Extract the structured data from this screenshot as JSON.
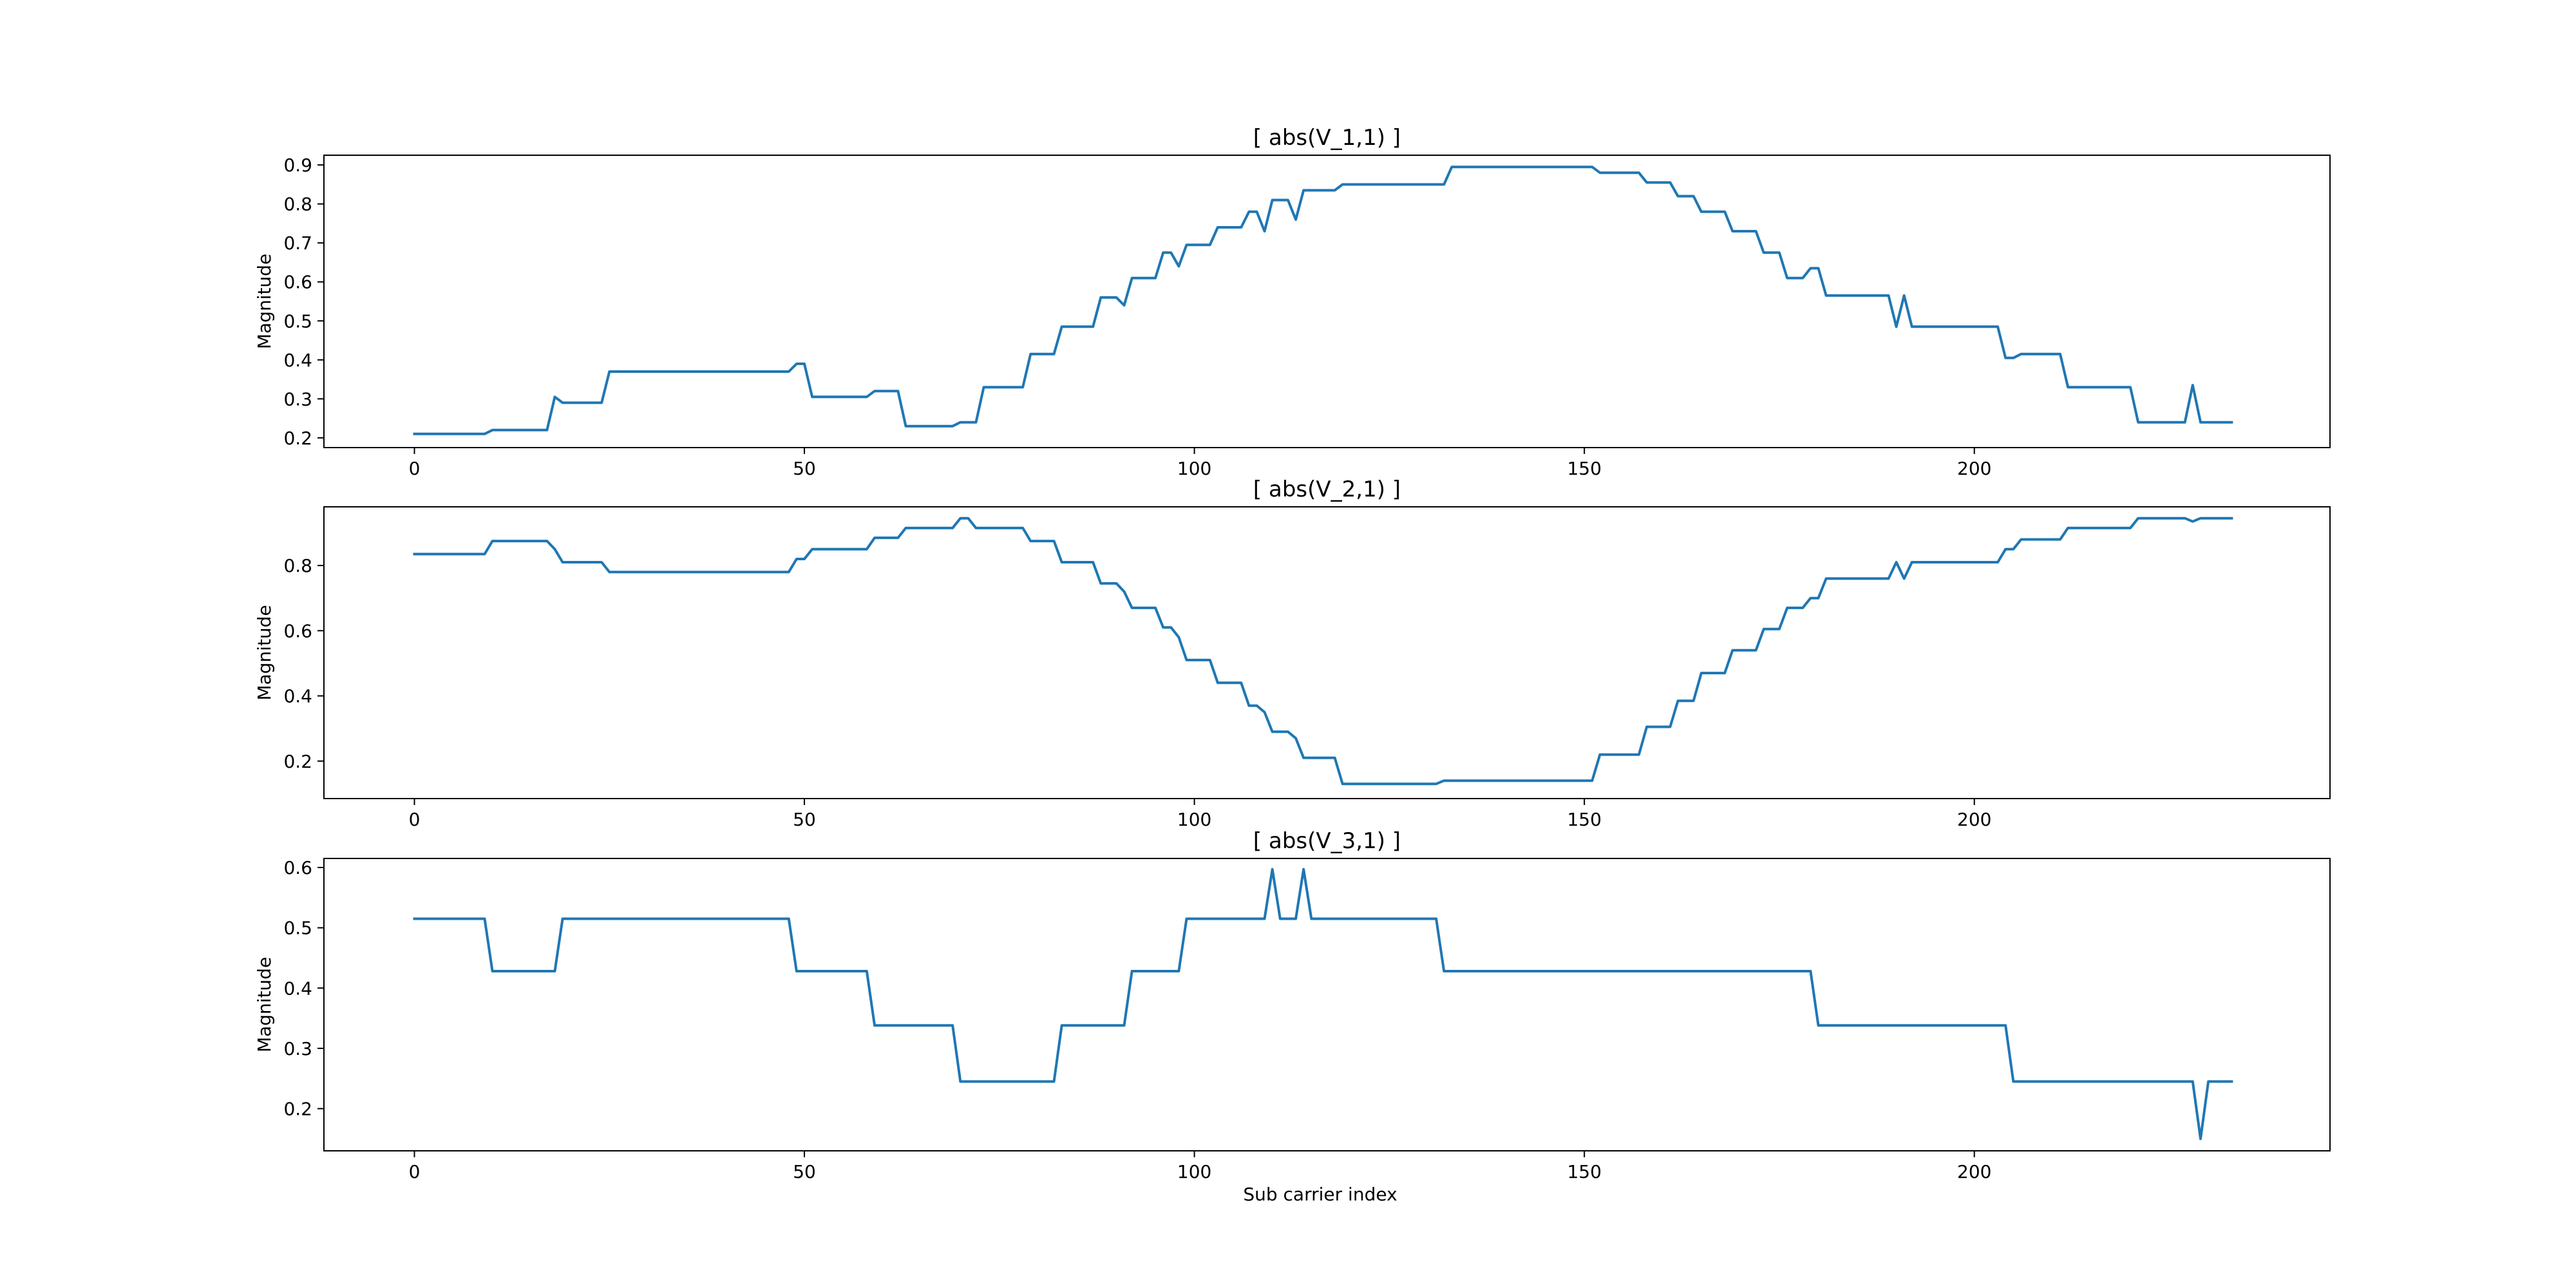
{
  "figure": {
    "xlabel": "Sub carrier index",
    "line_color": "#1f77b4"
  },
  "chart_data": [
    {
      "type": "line",
      "title": "[ abs(V_1,1) ]",
      "xlabel": "",
      "ylabel": "Magnitude",
      "xlim": [
        -11.6,
        245.6
      ],
      "ylim": [
        0.175,
        0.925
      ],
      "xticks": [
        0,
        50,
        100,
        150,
        200
      ],
      "xtick_labels": [
        "0",
        "50",
        "100",
        "150",
        "200"
      ],
      "yticks": [
        0.2,
        0.3,
        0.4,
        0.5,
        0.6,
        0.7,
        0.8,
        0.9
      ],
      "ytick_labels": [
        "0.2",
        "0.3",
        "0.4",
        "0.5",
        "0.6",
        "0.7",
        "0.8",
        "0.9"
      ],
      "series": [
        {
          "name": "abs(V_1,1)",
          "x": [
            0,
            9,
            10,
            17,
            18,
            19,
            24,
            25,
            48,
            49,
            50,
            51,
            58,
            59,
            62,
            63,
            69,
            70,
            72,
            73,
            78,
            79,
            82,
            83,
            87,
            88,
            90,
            91,
            92,
            95,
            96,
            97,
            98,
            99,
            102,
            103,
            106,
            107,
            108,
            109,
            110,
            112,
            113,
            114,
            115,
            118,
            119,
            132,
            133,
            151,
            152,
            157,
            158,
            161,
            162,
            164,
            165,
            168,
            169,
            172,
            173,
            175,
            176,
            178,
            179,
            180,
            181,
            183,
            184,
            189,
            190,
            191,
            192,
            203,
            204,
            205,
            206,
            211,
            212,
            220,
            221,
            227,
            228,
            229,
            233
          ],
          "values": [
            0.21,
            0.21,
            0.22,
            0.22,
            0.305,
            0.29,
            0.29,
            0.37,
            0.37,
            0.39,
            0.39,
            0.305,
            0.305,
            0.32,
            0.32,
            0.23,
            0.23,
            0.24,
            0.24,
            0.33,
            0.33,
            0.415,
            0.415,
            0.485,
            0.485,
            0.56,
            0.56,
            0.54,
            0.61,
            0.61,
            0.675,
            0.675,
            0.64,
            0.695,
            0.695,
            0.74,
            0.74,
            0.78,
            0.78,
            0.73,
            0.81,
            0.81,
            0.76,
            0.835,
            0.835,
            0.835,
            0.85,
            0.85,
            0.895,
            0.895,
            0.88,
            0.88,
            0.855,
            0.855,
            0.82,
            0.82,
            0.78,
            0.78,
            0.73,
            0.73,
            0.675,
            0.675,
            0.61,
            0.61,
            0.635,
            0.635,
            0.565,
            0.565,
            0.565,
            0.565,
            0.485,
            0.565,
            0.485,
            0.485,
            0.405,
            0.405,
            0.415,
            0.415,
            0.33,
            0.33,
            0.24,
            0.24,
            0.335,
            0.24,
            0.24
          ]
        }
      ]
    },
    {
      "type": "line",
      "title": "[ abs(V_2,1) ]",
      "xlabel": "",
      "ylabel": "Magnitude",
      "xlim": [
        -11.6,
        245.6
      ],
      "ylim": [
        0.085,
        0.98
      ],
      "xticks": [
        0,
        50,
        100,
        150,
        200
      ],
      "xtick_labels": [
        "0",
        "50",
        "100",
        "150",
        "200"
      ],
      "yticks": [
        0.2,
        0.4,
        0.6,
        0.8
      ],
      "ytick_labels": [
        "0.2",
        "0.4",
        "0.6",
        "0.8"
      ],
      "series": [
        {
          "name": "abs(V_2,1)",
          "x": [
            0,
            9,
            10,
            17,
            18,
            19,
            24,
            25,
            48,
            49,
            50,
            51,
            58,
            59,
            62,
            63,
            69,
            70,
            71,
            72,
            78,
            79,
            82,
            83,
            87,
            88,
            90,
            91,
            92,
            95,
            96,
            97,
            98,
            99,
            102,
            103,
            106,
            107,
            108,
            109,
            110,
            112,
            113,
            114,
            118,
            119,
            131,
            132,
            151,
            152,
            157,
            158,
            161,
            162,
            164,
            165,
            168,
            169,
            172,
            173,
            175,
            176,
            178,
            179,
            180,
            181,
            183,
            184,
            189,
            190,
            191,
            192,
            203,
            204,
            205,
            206,
            211,
            212,
            220,
            221,
            227,
            228,
            229,
            233
          ],
          "values": [
            0.835,
            0.835,
            0.875,
            0.875,
            0.85,
            0.81,
            0.81,
            0.78,
            0.78,
            0.82,
            0.82,
            0.85,
            0.85,
            0.885,
            0.885,
            0.915,
            0.915,
            0.945,
            0.945,
            0.915,
            0.915,
            0.875,
            0.875,
            0.81,
            0.81,
            0.745,
            0.745,
            0.72,
            0.67,
            0.67,
            0.61,
            0.61,
            0.58,
            0.51,
            0.51,
            0.44,
            0.44,
            0.37,
            0.37,
            0.35,
            0.29,
            0.29,
            0.27,
            0.21,
            0.21,
            0.13,
            0.13,
            0.14,
            0.14,
            0.22,
            0.22,
            0.305,
            0.305,
            0.385,
            0.385,
            0.47,
            0.47,
            0.54,
            0.54,
            0.605,
            0.605,
            0.67,
            0.67,
            0.7,
            0.7,
            0.76,
            0.76,
            0.76,
            0.76,
            0.81,
            0.76,
            0.81,
            0.81,
            0.85,
            0.85,
            0.88,
            0.88,
            0.915,
            0.915,
            0.945,
            0.945,
            0.935,
            0.945,
            0.945
          ]
        }
      ]
    },
    {
      "type": "line",
      "title": "[ abs(V_3,1) ]",
      "xlabel": "Sub carrier index",
      "ylabel": "Magnitude",
      "xlim": [
        -11.6,
        245.6
      ],
      "ylim": [
        0.13,
        0.615
      ],
      "xticks": [
        0,
        50,
        100,
        150,
        200
      ],
      "xtick_labels": [
        "0",
        "50",
        "100",
        "150",
        "200"
      ],
      "yticks": [
        0.2,
        0.3,
        0.4,
        0.5,
        0.6
      ],
      "ytick_labels": [
        "0.2",
        "0.3",
        "0.4",
        "0.5",
        "0.6"
      ],
      "series": [
        {
          "name": "abs(V_3,1)",
          "x": [
            0,
            9,
            10,
            18,
            19,
            48,
            49,
            58,
            59,
            69,
            70,
            82,
            83,
            91,
            92,
            98,
            99,
            109,
            110,
            111,
            113,
            114,
            115,
            131,
            132,
            179,
            180,
            204,
            205,
            228,
            229,
            230,
            233
          ],
          "values": [
            0.515,
            0.515,
            0.428,
            0.428,
            0.515,
            0.515,
            0.428,
            0.428,
            0.338,
            0.338,
            0.245,
            0.245,
            0.338,
            0.338,
            0.428,
            0.428,
            0.515,
            0.515,
            0.597,
            0.515,
            0.515,
            0.597,
            0.515,
            0.515,
            0.428,
            0.428,
            0.338,
            0.338,
            0.245,
            0.245,
            0.15,
            0.245,
            0.245
          ]
        }
      ]
    }
  ]
}
